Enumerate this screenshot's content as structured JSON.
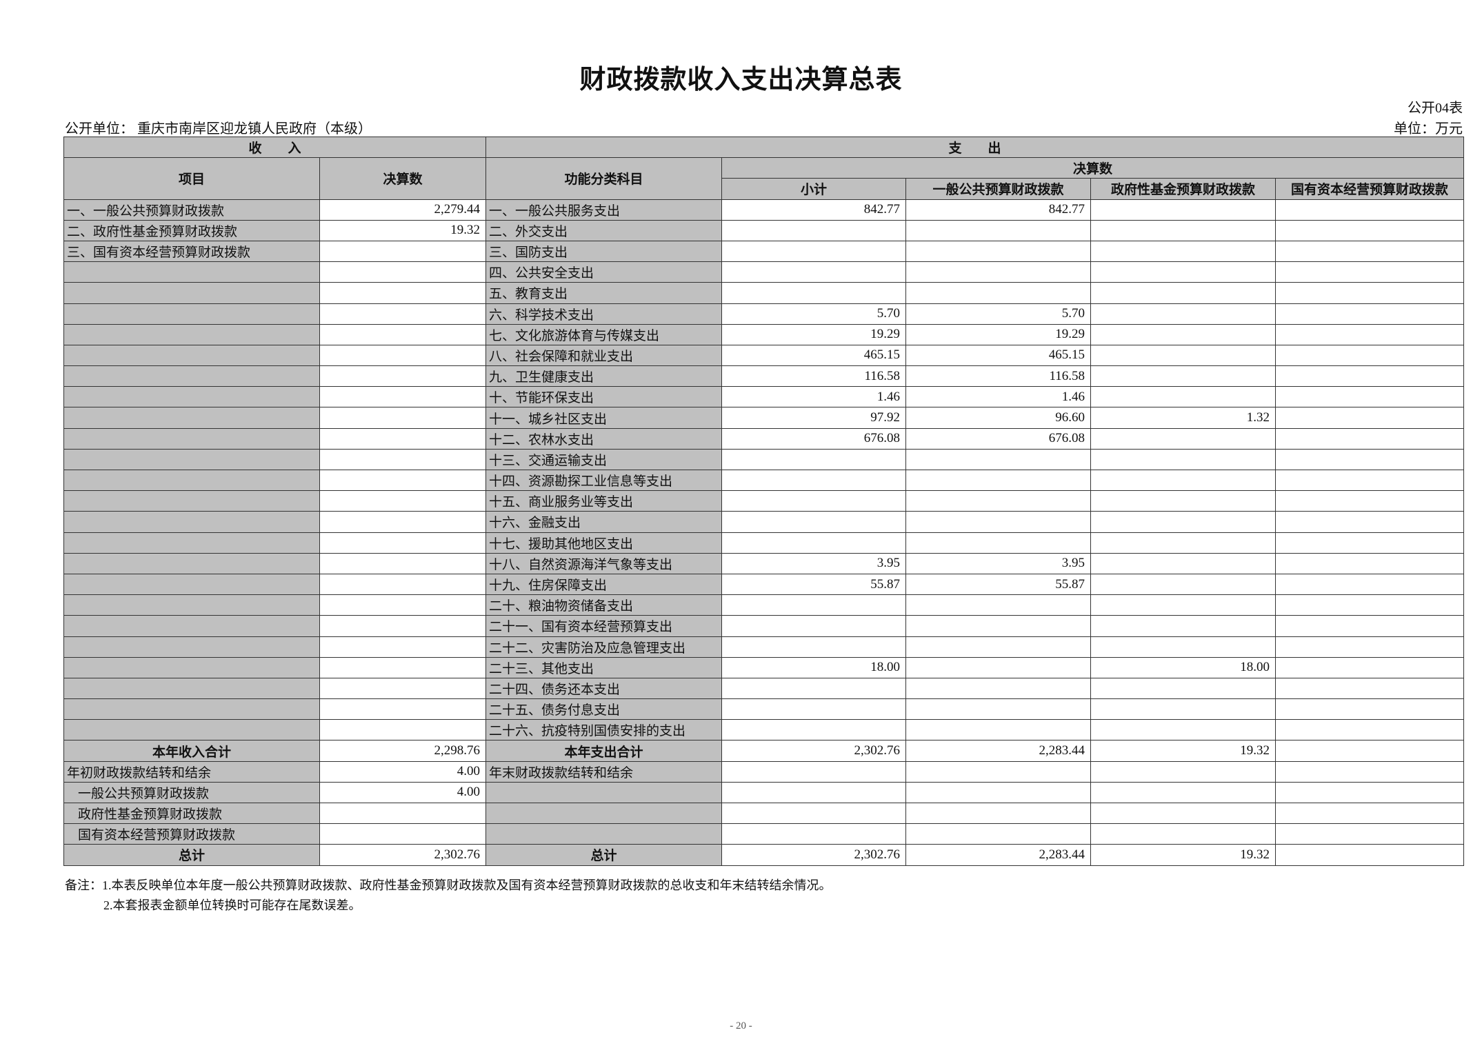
{
  "title": "财政拨款收入支出决算总表",
  "form_no": "公开04表",
  "org": "公开单位：  重庆市南岸区迎龙镇人民政府（本级）",
  "unit": "单位：万元",
  "header": {
    "income": "收　　入",
    "expense": "支　　出",
    "item": "项目",
    "amount": "决算数",
    "func": "功能分类科目",
    "final": "决算数",
    "subtotal": "小计",
    "general": "一般公共预算财政拨款",
    "fund": "政府性基金预算财政拨款",
    "state": "国有资本经营预算财政拨款"
  },
  "rows": [
    [
      "一、一般公共预算财政拨款",
      "2,279.44",
      "一、一般公共服务支出",
      "842.77",
      "842.77",
      "",
      ""
    ],
    [
      "二、政府性基金预算财政拨款",
      "19.32",
      "二、外交支出",
      "",
      "",
      "",
      ""
    ],
    [
      "三、国有资本经营预算财政拨款",
      "",
      "三、国防支出",
      "",
      "",
      "",
      ""
    ],
    [
      "",
      "",
      "四、公共安全支出",
      "",
      "",
      "",
      ""
    ],
    [
      "",
      "",
      "五、教育支出",
      "",
      "",
      "",
      ""
    ],
    [
      "",
      "",
      "六、科学技术支出",
      "5.70",
      "5.70",
      "",
      ""
    ],
    [
      "",
      "",
      "七、文化旅游体育与传媒支出",
      "19.29",
      "19.29",
      "",
      ""
    ],
    [
      "",
      "",
      "八、社会保障和就业支出",
      "465.15",
      "465.15",
      "",
      ""
    ],
    [
      "",
      "",
      "九、卫生健康支出",
      "116.58",
      "116.58",
      "",
      ""
    ],
    [
      "",
      "",
      "十、节能环保支出",
      "1.46",
      "1.46",
      "",
      ""
    ],
    [
      "",
      "",
      "十一、城乡社区支出",
      "97.92",
      "96.60",
      "1.32",
      ""
    ],
    [
      "",
      "",
      "十二、农林水支出",
      "676.08",
      "676.08",
      "",
      ""
    ],
    [
      "",
      "",
      "十三、交通运输支出",
      "",
      "",
      "",
      ""
    ],
    [
      "",
      "",
      "十四、资源勘探工业信息等支出",
      "",
      "",
      "",
      ""
    ],
    [
      "",
      "",
      "十五、商业服务业等支出",
      "",
      "",
      "",
      ""
    ],
    [
      "",
      "",
      "十六、金融支出",
      "",
      "",
      "",
      ""
    ],
    [
      "",
      "",
      "十七、援助其他地区支出",
      "",
      "",
      "",
      ""
    ],
    [
      "",
      "",
      "十八、自然资源海洋气象等支出",
      "3.95",
      "3.95",
      "",
      ""
    ],
    [
      "",
      "",
      "十九、住房保障支出",
      "55.87",
      "55.87",
      "",
      ""
    ],
    [
      "",
      "",
      "二十、粮油物资储备支出",
      "",
      "",
      "",
      ""
    ],
    [
      "",
      "",
      "二十一、国有资本经营预算支出",
      "",
      "",
      "",
      ""
    ],
    [
      "",
      "",
      "二十二、灾害防治及应急管理支出",
      "",
      "",
      "",
      ""
    ],
    [
      "",
      "",
      "二十三、其他支出",
      "18.00",
      "",
      "18.00",
      ""
    ],
    [
      "",
      "",
      "二十四、债务还本支出",
      "",
      "",
      "",
      ""
    ],
    [
      "",
      "",
      "二十五、债务付息支出",
      "",
      "",
      "",
      ""
    ],
    [
      "",
      "",
      "二十六、抗疫特别国债安排的支出",
      "",
      "",
      "",
      ""
    ],
    [
      "本年收入合计",
      "2,298.76",
      "本年支出合计",
      "2,302.76",
      "2,283.44",
      "19.32",
      ""
    ],
    [
      "年初财政拨款结转和结余",
      "4.00",
      "年末财政拨款结转和结余",
      "",
      "",
      "",
      ""
    ],
    [
      "一般公共预算财政拨款",
      "4.00",
      "",
      "",
      "",
      "",
      ""
    ],
    [
      "政府性基金预算财政拨款",
      "",
      "",
      "",
      "",
      "",
      ""
    ],
    [
      "国有资本经营预算财政拨款",
      "",
      "",
      "",
      "",
      "",
      ""
    ],
    [
      "总计",
      "2,302.76",
      "总计",
      "2,302.76",
      "2,283.44",
      "19.32",
      ""
    ]
  ],
  "notes": [
    "备注：1.本表反映单位本年度一般公共预算财政拨款、政府性基金预算财政拨款及国有资本经营预算财政拨款的总收支和年末结转结余情况。",
    "2.本套报表金额单位转换时可能存在尾数误差。"
  ],
  "page_number": "- 20 -"
}
